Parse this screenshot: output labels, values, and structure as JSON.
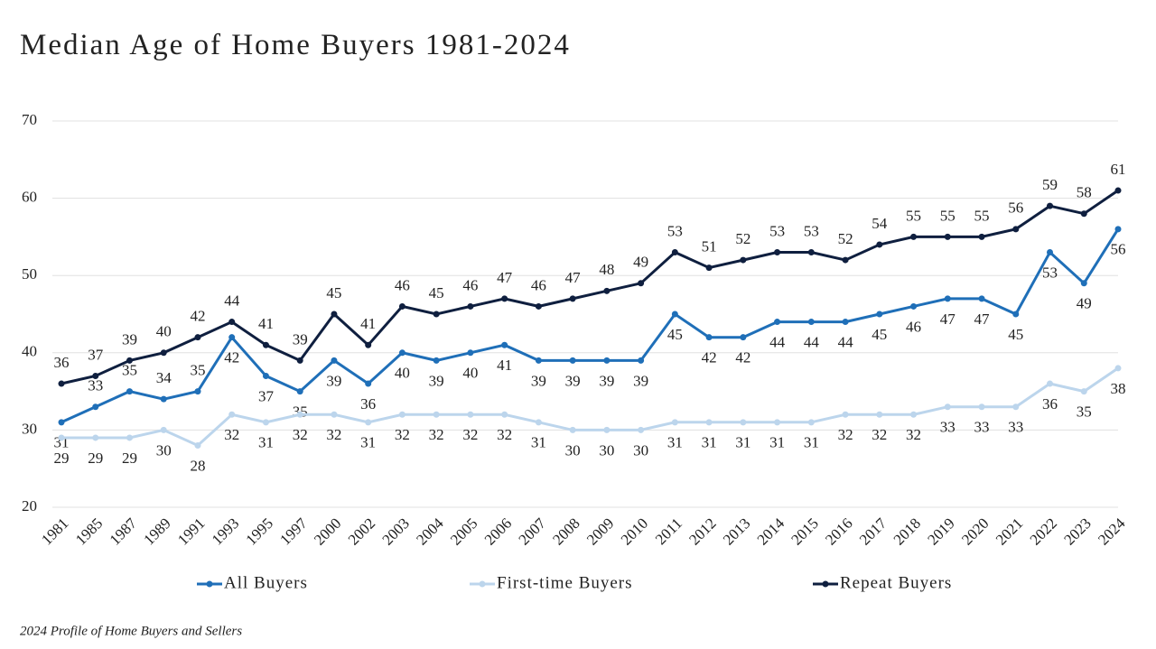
{
  "chart_data": {
    "type": "line",
    "title": "Median Age of Home Buyers 1981-2024",
    "source": "2024 Profile of Home Buyers and Sellers",
    "categories": [
      "1981",
      "1985",
      "1987",
      "1989",
      "1991",
      "1993",
      "1995",
      "1997",
      "2000",
      "2002",
      "2003",
      "2004",
      "2005",
      "2006",
      "2007",
      "2008",
      "2009",
      "2010",
      "2011",
      "2012",
      "2013",
      "2014",
      "2015",
      "2016",
      "2017",
      "2018",
      "2019",
      "2020",
      "2021",
      "2022",
      "2023",
      "2024"
    ],
    "series": [
      {
        "name": "All Buyers",
        "color": "#1f6fb8",
        "values": [
          31,
          33,
          35,
          34,
          35,
          42,
          37,
          35,
          39,
          36,
          40,
          39,
          40,
          41,
          39,
          39,
          39,
          39,
          45,
          42,
          42,
          44,
          44,
          44,
          45,
          46,
          47,
          47,
          45,
          53,
          49,
          56
        ]
      },
      {
        "name": "First-time Buyers",
        "color": "#bcd5ec",
        "values": [
          29,
          29,
          29,
          30,
          28,
          32,
          31,
          32,
          32,
          31,
          32,
          32,
          32,
          32,
          31,
          30,
          30,
          30,
          31,
          31,
          31,
          31,
          31,
          32,
          32,
          32,
          33,
          33,
          33,
          36,
          35,
          38
        ]
      },
      {
        "name": "Repeat Buyers",
        "color": "#0f1f3f",
        "values": [
          36,
          37,
          39,
          40,
          42,
          44,
          41,
          39,
          45,
          41,
          46,
          45,
          46,
          47,
          46,
          47,
          48,
          49,
          53,
          51,
          52,
          53,
          53,
          52,
          54,
          55,
          55,
          55,
          56,
          59,
          58,
          61
        ]
      }
    ],
    "ylim": [
      20,
      70
    ],
    "yticks": [
      20,
      30,
      40,
      50,
      60,
      70
    ],
    "grid": true,
    "legend": "bottom"
  }
}
